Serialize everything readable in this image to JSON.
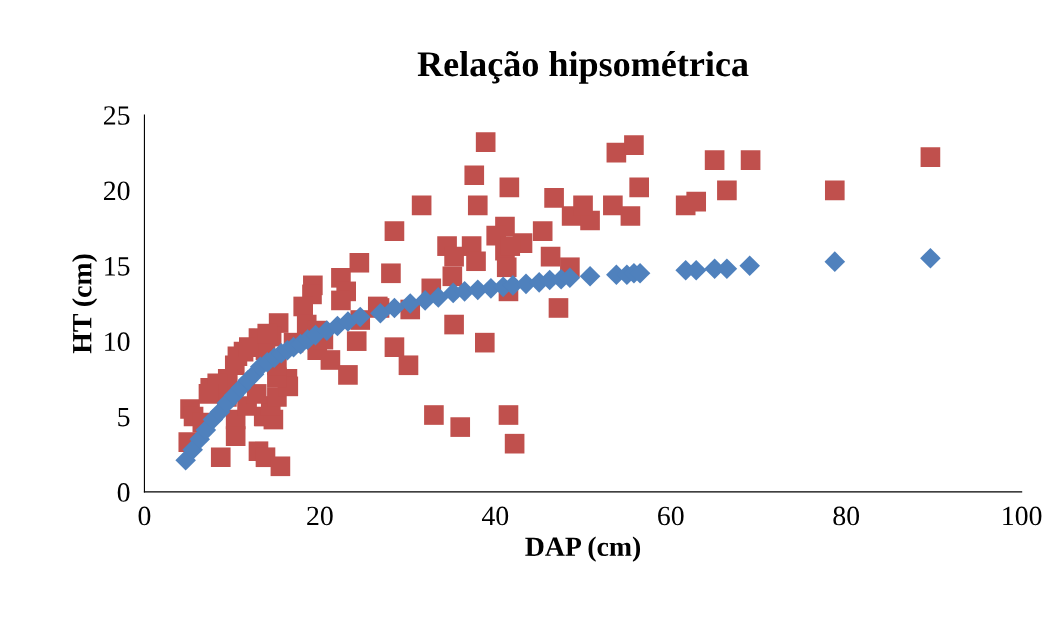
{
  "chart_data": {
    "type": "scatter",
    "title": "Relação hipsométrica",
    "xlabel": "DAP (cm)",
    "ylabel": "HT (cm)",
    "xlim": [
      0,
      100
    ],
    "xticks": [
      0,
      20,
      40,
      60,
      80,
      100
    ],
    "ylim": [
      0,
      25
    ],
    "yticks": [
      0,
      5,
      10,
      15,
      20,
      25
    ],
    "grid": false,
    "legend": false,
    "series": [
      {
        "color": "#c0504d",
        "marker": "square",
        "x": [
          38.9,
          37.6,
          41.6,
          31.6,
          38.0,
          46.7,
          48.7,
          50.8,
          50.0,
          53.4,
          53.8,
          55.8,
          56.4,
          55.4,
          28.5,
          28.1,
          34.5,
          37.3,
          37.8,
          35.3,
          41.1,
          40.1,
          43.1,
          45.4,
          41.1,
          41.7,
          46.3,
          48.5,
          41.3,
          41.5,
          35.1,
          32.7,
          47.2,
          35.3,
          26.8,
          30.3,
          28.5,
          30.1,
          38.8,
          33.0,
          36.0,
          41.5,
          42.2,
          65.0,
          69.1,
          66.4,
          61.7,
          62.9,
          78.7,
          89.6,
          24.5,
          19.2,
          22.4,
          23.0,
          19.1,
          22.4,
          18.1,
          26.6,
          18.5,
          15.3,
          13.0,
          14.5,
          11.3,
          24.2,
          21.2,
          23.2,
          10.3,
          9.5,
          7.5,
          16.3,
          5.2,
          5.6,
          6.6,
          5.0,
          8.7,
          13.0,
          13.8,
          15.5,
          10.4,
          10.4,
          13.6,
          14.7,
          11.7,
          14.4,
          15.1,
          16.4,
          12.8,
          9.4,
          8.3,
          7.3,
          15.1,
          10.6,
          13.8,
          11.9,
          17.0,
          15.1,
          19.7,
          20.4,
          19.7,
          14.0,
          24.6
        ],
        "values": [
          23.2,
          21.0,
          20.2,
          19.0,
          19.0,
          19.5,
          18.3,
          18.0,
          19.0,
          19.0,
          22.5,
          23.0,
          20.2,
          18.3,
          17.3,
          14.5,
          16.3,
          16.3,
          15.3,
          15.6,
          17.6,
          17.0,
          16.5,
          17.3,
          16.0,
          16.3,
          15.6,
          14.9,
          14.9,
          13.3,
          14.3,
          13.5,
          12.2,
          11.1,
          12.2,
          12.1,
          9.6,
          8.4,
          9.9,
          5.1,
          4.3,
          5.1,
          3.2,
          22.0,
          22.0,
          20.0,
          19.0,
          19.25,
          20.0,
          22.2,
          15.2,
          13.7,
          14.2,
          13.3,
          13.1,
          12.7,
          12.3,
          12.3,
          11.1,
          11.2,
          10.2,
          10.3,
          9.3,
          10.0,
          8.75,
          7.76,
          8.4,
          7.5,
          6.9,
          7.5,
          5.5,
          5.0,
          4.6,
          3.3,
          2.3,
          2.7,
          2.3,
          1.7,
          4.8,
          3.7,
          5.0,
          4.8,
          5.7,
          5.7,
          6.3,
          7.0,
          6.5,
          6.3,
          7.2,
          6.5,
          7.6,
          9.0,
          9.4,
          9.6,
          9.9,
          8.4,
          9.4,
          10.1,
          10.7,
          10.5,
          11.4
        ]
      },
      {
        "color": "#4f81bd",
        "marker": "diamond",
        "x": [
          4.7,
          5.5,
          6.3,
          7.0,
          7.8,
          8.6,
          9.4,
          10.2,
          11.0,
          11.8,
          12.5,
          13.2,
          14.0,
          14.8,
          15.6,
          16.3,
          17.0,
          17.8,
          18.6,
          19.5,
          20.8,
          22.0,
          23.2,
          24.6,
          26.9,
          28.5,
          30.3,
          32.0,
          33.5,
          35.2,
          36.5,
          38.0,
          39.5,
          40.9,
          42.0,
          43.5,
          45.0,
          46.2,
          47.5,
          48.5,
          50.8,
          53.8,
          55.0,
          55.8,
          56.5,
          61.7,
          62.9,
          65.0,
          66.4,
          69.0,
          78.7,
          89.6
        ],
        "values": [
          2.1,
          2.8,
          3.5,
          4.1,
          4.8,
          5.3,
          5.9,
          6.4,
          6.9,
          7.4,
          7.8,
          8.3,
          8.6,
          8.9,
          9.2,
          9.4,
          9.6,
          9.8,
          10.1,
          10.4,
          10.7,
          11.0,
          11.3,
          11.6,
          11.85,
          12.2,
          12.5,
          12.7,
          12.9,
          13.2,
          13.3,
          13.4,
          13.5,
          13.6,
          13.7,
          13.8,
          13.9,
          14.05,
          14.1,
          14.2,
          14.3,
          14.4,
          14.4,
          14.5,
          14.5,
          14.7,
          14.7,
          14.8,
          14.8,
          15.0,
          15.27,
          15.5
        ]
      }
    ]
  }
}
